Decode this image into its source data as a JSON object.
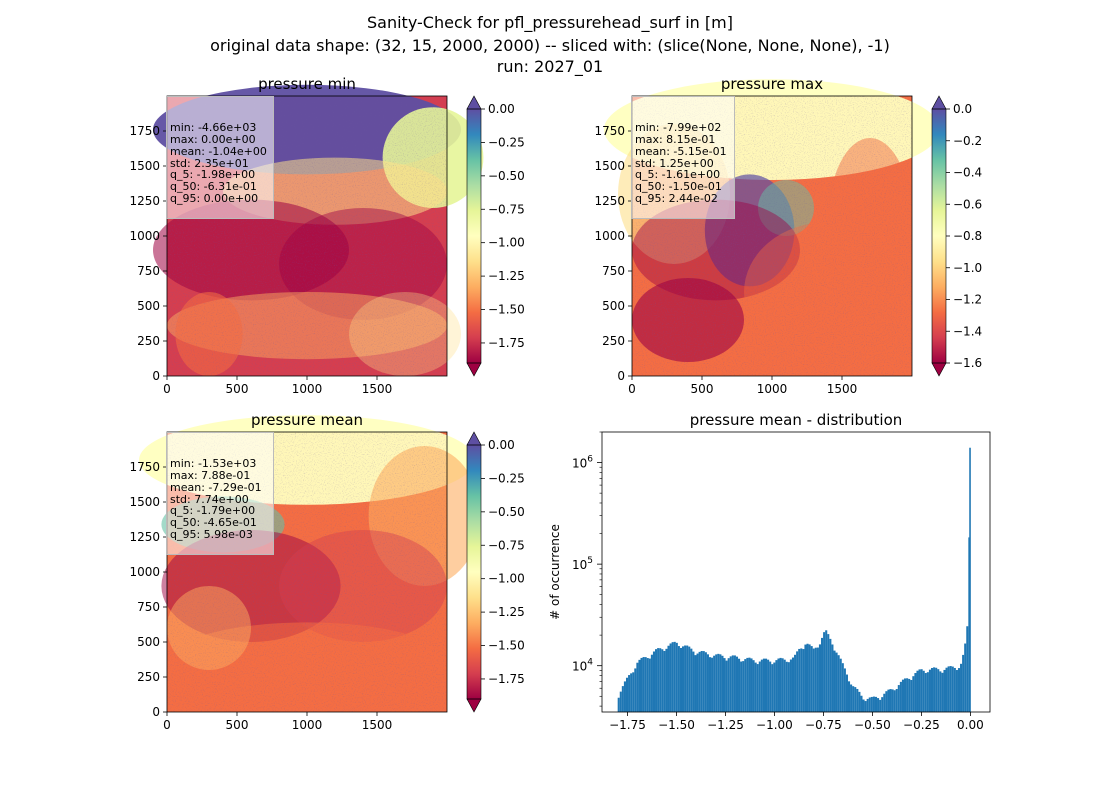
{
  "figure": {
    "title_lines": [
      "Sanity-Check for pfl_pressurehead_surf in [m]",
      "original data shape: (32, 15, 2000, 2000) -- sliced with: (slice(None, None, None), -1)",
      "run: 2027_01"
    ]
  },
  "colors": {
    "spectral": [
      "#9e0142",
      "#d53e4f",
      "#f46d43",
      "#fdae61",
      "#fee08b",
      "#ffffbf",
      "#e6f598",
      "#abdda4",
      "#66c2a5",
      "#3288bd",
      "#5e4fa2"
    ],
    "histogram_bar": "#1f77b4"
  },
  "chart_data": [
    {
      "type": "heatmap",
      "title": "pressure min",
      "xticks": [
        0,
        500,
        1000,
        1500
      ],
      "yticks": [
        0,
        250,
        500,
        750,
        1000,
        1250,
        1500,
        1750
      ],
      "xlim": [
        0,
        2000
      ],
      "ylim": [
        0,
        2000
      ],
      "colorbar": {
        "vmin": -1.9,
        "vmax": 0.0,
        "ticks": [
          "0.00",
          "-0.25",
          "-0.50",
          "-0.75",
          "-1.00",
          "-1.25",
          "-1.50",
          "-1.75"
        ],
        "extend": "both"
      },
      "stats": [
        "min: -4.66e+03",
        "max: 0.00e+00",
        "mean: -1.04e+00",
        "std: 2.35e+01",
        "q_5: -1.98e+00",
        "q_50: -6.31e-01",
        "q_95: 0.00e+00"
      ]
    },
    {
      "type": "heatmap",
      "title": "pressure max",
      "xticks": [
        0,
        500,
        1000,
        1500
      ],
      "yticks": [
        0,
        250,
        500,
        750,
        1000,
        1250,
        1500,
        1750
      ],
      "xlim": [
        0,
        2000
      ],
      "ylim": [
        0,
        2000
      ],
      "colorbar": {
        "vmin": -1.6,
        "vmax": 0.0,
        "ticks": [
          "0.0",
          "-0.2",
          "-0.4",
          "-0.6",
          "-0.8",
          "-1.0",
          "-1.2",
          "-1.4",
          "-1.6"
        ],
        "extend": "both"
      },
      "stats": [
        "min: -7.99e+02",
        "max: 8.15e-01",
        "mean: -5.15e-01",
        "std: 1.25e+00",
        "q_5: -1.61e+00",
        "q_50: -1.50e-01",
        "q_95: 2.44e-02"
      ]
    },
    {
      "type": "heatmap",
      "title": "pressure mean",
      "xticks": [
        0,
        500,
        1000,
        1500
      ],
      "yticks": [
        0,
        250,
        500,
        750,
        1000,
        1250,
        1500,
        1750
      ],
      "xlim": [
        0,
        2000
      ],
      "ylim": [
        0,
        2000
      ],
      "colorbar": {
        "vmin": -1.9,
        "vmax": 0.0,
        "ticks": [
          "0.00",
          "-0.25",
          "-0.50",
          "-0.75",
          "-1.00",
          "-1.25",
          "-1.50",
          "-1.75"
        ],
        "extend": "both"
      },
      "stats": [
        "min: -1.53e+03",
        "max: 7.88e-01",
        "mean: -7.29e-01",
        "std: 7.74e+00",
        "q_5: -1.79e+00",
        "q_50: -4.65e-01",
        "q_95: 5.98e-03"
      ]
    },
    {
      "type": "bar",
      "title": "pressure mean - distribution",
      "ylabel": "# of occurrence",
      "xlabel": "",
      "log_y": true,
      "xlim": [
        -1.88,
        0.1
      ],
      "ylim": [
        3500,
        2000000
      ],
      "xticks": [
        -1.75,
        -1.5,
        -1.25,
        -1.0,
        -0.75,
        -0.5,
        -0.25,
        0.0
      ],
      "xtick_labels": [
        "−1.75",
        "−1.50",
        "−1.25",
        "−1.00",
        "−0.75",
        "−0.50",
        "−0.25",
        "0.00"
      ],
      "yticks": [
        10000,
        100000,
        1000000
      ],
      "ytick_labels": [
        "10^4",
        "10^5",
        "10^6"
      ],
      "x": [
        -1.8,
        -1.7,
        -1.6,
        -1.5,
        -1.4,
        -1.3,
        -1.2,
        -1.1,
        -1.0,
        -0.9,
        -0.87,
        -0.84,
        -0.8,
        -0.77,
        -0.74,
        -0.7,
        -0.65,
        -0.6,
        -0.55,
        -0.5,
        -0.45,
        -0.4,
        -0.35,
        -0.3,
        -0.25,
        -0.2,
        -0.15,
        -0.1,
        -0.05,
        -0.03,
        -0.01,
        0.0
      ],
      "y": [
        5000,
        10500,
        13800,
        16500,
        13500,
        12300,
        11800,
        11000,
        11000,
        11500,
        14500,
        16500,
        14000,
        16500,
        21500,
        16000,
        9800,
        6200,
        4800,
        4600,
        5000,
        5700,
        6700,
        7800,
        8800,
        9000,
        9000,
        9300,
        9800,
        13500,
        29000,
        1400000
      ]
    }
  ]
}
